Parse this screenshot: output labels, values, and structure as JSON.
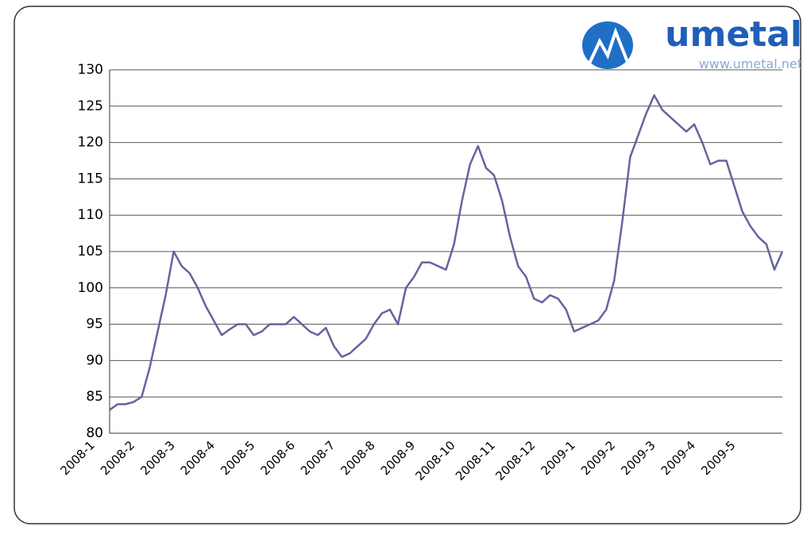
{
  "logo": {
    "name": "umetal",
    "url": "www.umetal.net"
  },
  "chart_data": {
    "type": "line",
    "categories": [
      "2008-1",
      null,
      null,
      null,
      null,
      "2008-2",
      null,
      null,
      null,
      null,
      "2008-3",
      null,
      null,
      null,
      null,
      "2008-4",
      null,
      null,
      null,
      null,
      "2008-5",
      null,
      null,
      null,
      null,
      "2008-6",
      null,
      null,
      null,
      null,
      "2008-7",
      null,
      null,
      null,
      null,
      "2008-8",
      null,
      null,
      null,
      null,
      "2008-9",
      null,
      null,
      null,
      null,
      "2008-10",
      null,
      null,
      null,
      null,
      "2008-11",
      null,
      null,
      null,
      null,
      "2008-12",
      null,
      null,
      null,
      null,
      "2009-1",
      null,
      null,
      null,
      null,
      "2009-2",
      null,
      null,
      null,
      null,
      "2009-3",
      null,
      null,
      null,
      null,
      "2009-4",
      null,
      null,
      null,
      null,
      "2009-5",
      null,
      null,
      null,
      null
    ],
    "values": [
      83.2,
      84,
      84,
      84.3,
      85,
      89,
      94,
      99,
      105,
      103,
      102,
      100,
      97.5,
      95.5,
      93.5,
      94.3,
      95,
      95,
      93.5,
      94,
      95,
      95,
      95,
      96,
      95,
      94,
      93.5,
      94.5,
      92,
      90.5,
      91,
      92,
      93,
      95,
      96.5,
      97,
      95,
      100,
      101.5,
      103.5,
      103.5,
      103,
      102.5,
      106,
      112,
      117,
      119.5,
      116.5,
      115.5,
      112,
      107,
      103,
      101.5,
      98.5,
      98,
      99,
      98.5,
      97,
      94,
      94.5,
      95,
      95.5,
      97,
      101,
      109,
      118,
      121,
      124,
      126.5,
      124.5,
      123.5,
      122.5,
      121.5,
      122.5,
      120,
      117,
      117.5,
      117.5,
      114,
      110.5,
      108.5,
      107,
      106,
      102.5,
      105
    ],
    "color": "#62659e",
    "ylim": [
      80,
      130
    ],
    "yticks": [
      80,
      85,
      90,
      95,
      100,
      105,
      110,
      115,
      120,
      125,
      130
    ],
    "grid": true
  }
}
